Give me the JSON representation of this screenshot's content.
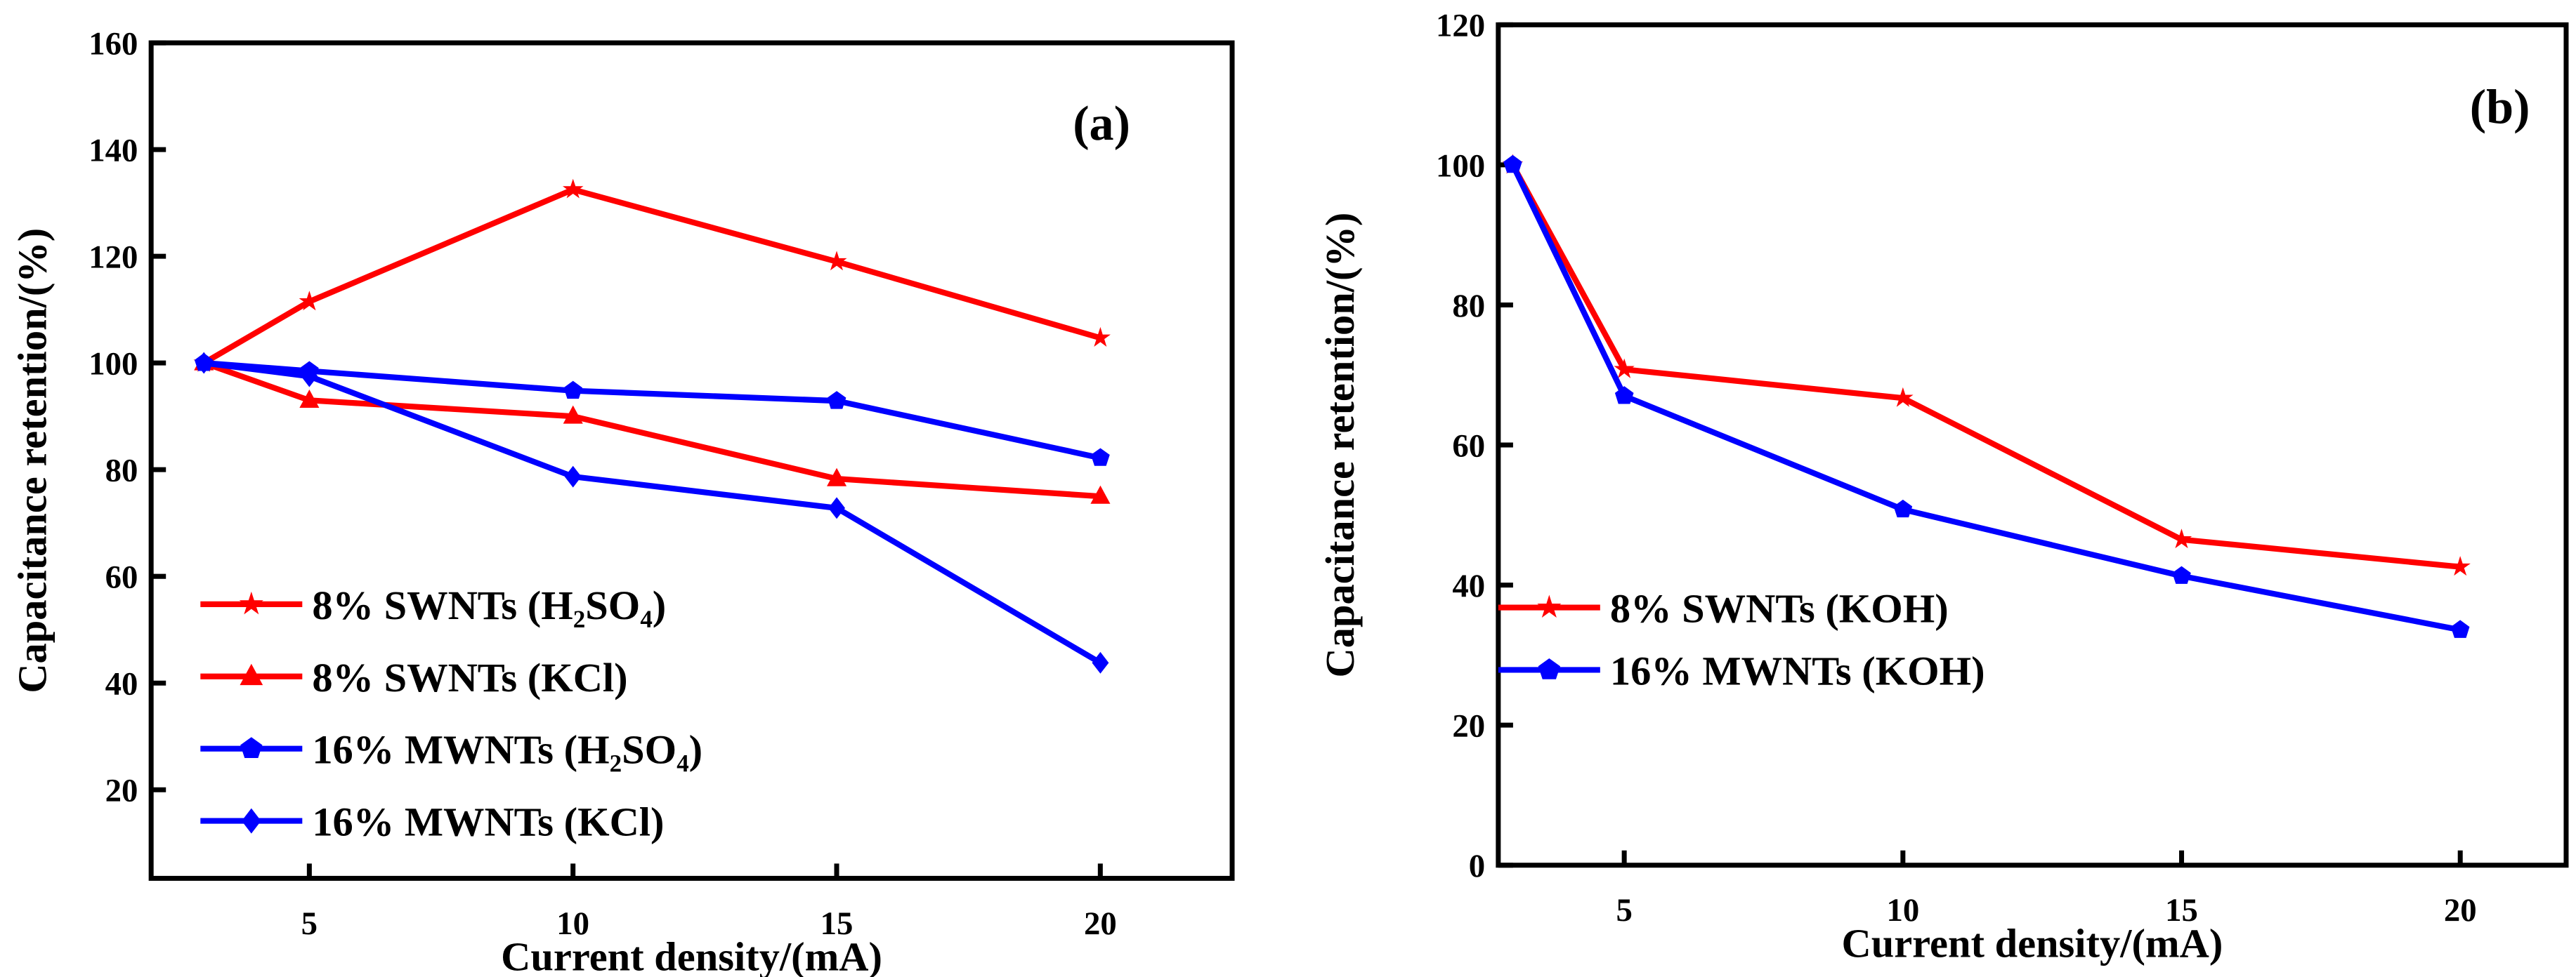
{
  "colors": {
    "red": "#ff0000",
    "blue": "#0000ff",
    "axis": "#000000"
  },
  "chart_data": [
    {
      "type": "line",
      "panel_label": "(a)",
      "xlabel": "Current density/(mA)",
      "ylabel": "Capacitance retention/(%)",
      "xlim": [
        2,
        22.5
      ],
      "ylim": [
        3.4,
        160
      ],
      "xticks": [
        5,
        10,
        15,
        20
      ],
      "yticks": [
        20,
        40,
        60,
        80,
        100,
        120,
        140,
        160
      ],
      "grid": false,
      "legend_position": "bottom-left",
      "x": [
        3,
        5,
        10,
        15,
        20
      ],
      "series": [
        {
          "name": "8% SWNTs (H₂SO₄)",
          "color": "red",
          "marker": "star",
          "values": [
            100,
            111.5,
            132.5,
            119,
            104.7
          ]
        },
        {
          "name": "8% SWNTs (KCl)",
          "color": "red",
          "marker": "triangle",
          "values": [
            100,
            93,
            90,
            78.3,
            75
          ]
        },
        {
          "name": "16% MWNTs (H₂SO₄)",
          "color": "blue",
          "marker": "pentagon",
          "values": [
            100,
            98.5,
            94.8,
            92.9,
            82.2
          ]
        },
        {
          "name": "16% MWNTs (KCl)",
          "color": "blue",
          "marker": "diamond",
          "values": [
            100,
            97.5,
            78.7,
            72.8,
            43.8
          ]
        }
      ]
    },
    {
      "type": "line",
      "panel_label": "(b)",
      "xlabel": "Current density/(mA)",
      "ylabel": "Capacitance retention/(%)",
      "xlim": [
        2.74,
        21.9
      ],
      "ylim": [
        0,
        120
      ],
      "xticks": [
        5,
        10,
        15,
        20
      ],
      "yticks": [
        0,
        20,
        40,
        60,
        80,
        100,
        120
      ],
      "grid": false,
      "legend_position": "bottom-left",
      "x": [
        3,
        5,
        10,
        15,
        20
      ],
      "series": [
        {
          "name": "8% SWNTs (KOH)",
          "color": "red",
          "marker": "star",
          "values": [
            100,
            70.8,
            66.7,
            46.5,
            42.6
          ]
        },
        {
          "name": "16% MWNTs (KOH)",
          "color": "blue",
          "marker": "pentagon",
          "values": [
            100,
            67,
            50.8,
            41.3,
            33.6
          ]
        }
      ]
    }
  ]
}
